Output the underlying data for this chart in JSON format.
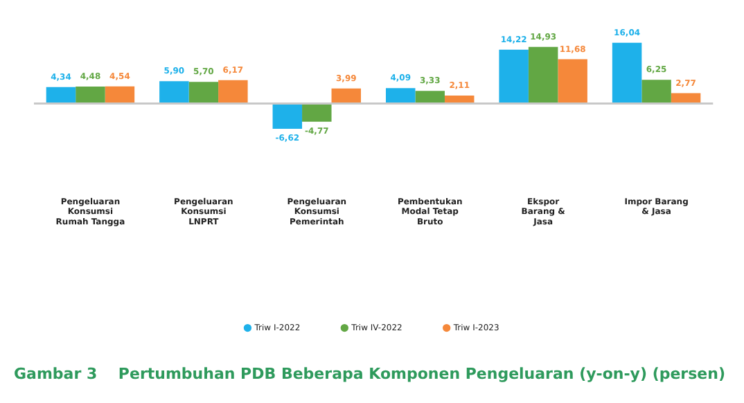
{
  "chart_data": {
    "type": "bar",
    "title": "Gambar 3    Pertumbuhan PDB Beberapa Komponen Pengeluaran (y-on-y) (persen)",
    "categories": [
      "Pengeluaran Konsumsi Rumah Tangga",
      "Pengeluaran Konsumsi LNPRT",
      "Pengeluaran Konsumsi Pemerintah",
      "Pembentukan Modal Tetap Bruto",
      "Ekspor Barang & Jasa",
      "Impor Barang & Jasa"
    ],
    "series": [
      {
        "name": "Triw I-2022",
        "color": "#1eb1ea",
        "values": [
          4.34,
          5.9,
          -6.62,
          4.09,
          14.22,
          16.04
        ],
        "value_labels": [
          "4,34",
          "5,90",
          "-6,62",
          "4,09",
          "14,22",
          "16,04"
        ]
      },
      {
        "name": "Triw IV-2022",
        "color": "#62a744",
        "values": [
          4.48,
          5.7,
          -4.77,
          3.33,
          14.93,
          6.25
        ],
        "value_labels": [
          "4,48",
          "5,70",
          "-4,77",
          "3,33",
          "14,93",
          "6,25"
        ]
      },
      {
        "name": "Triw I-2023",
        "color": "#f5883a",
        "values": [
          4.54,
          6.17,
          3.99,
          2.11,
          11.68,
          2.77
        ],
        "value_labels": [
          "4,54",
          "6,17",
          "3,99",
          "2,11",
          "11,68",
          "2,77"
        ]
      }
    ],
    "relative": false,
    "legend": "bottom",
    "grid": false
  }
}
